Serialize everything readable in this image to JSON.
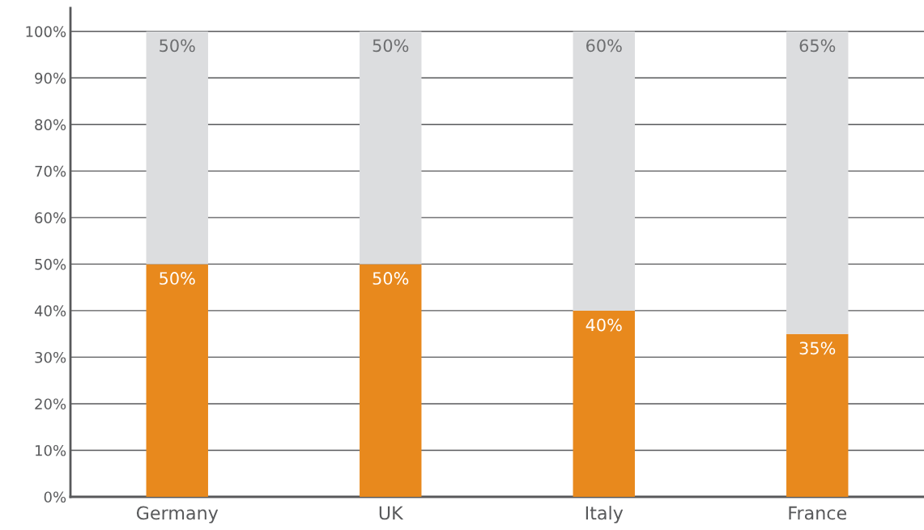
{
  "chart_data": {
    "type": "bar",
    "stacked": true,
    "categories": [
      "Germany",
      "UK",
      "Italy",
      "France"
    ],
    "series": [
      {
        "color": "#e8891d",
        "values": [
          50,
          50,
          40,
          35
        ],
        "value_labels": [
          "50%",
          "50%",
          "40%",
          "35%"
        ]
      },
      {
        "color": "#dcdddf",
        "values": [
          50,
          50,
          60,
          65
        ],
        "value_labels": [
          "50%",
          "50%",
          "60%",
          "65%"
        ]
      }
    ],
    "ylim": [
      0,
      105
    ],
    "yticks": [
      {
        "value": 0,
        "label": "0%"
      },
      {
        "value": 10,
        "label": "10%"
      },
      {
        "value": 20,
        "label": "20%"
      },
      {
        "value": 30,
        "label": "30%"
      },
      {
        "value": 40,
        "label": "40%"
      },
      {
        "value": 50,
        "label": "50%"
      },
      {
        "value": 60,
        "label": "60%"
      },
      {
        "value": 70,
        "label": "70%"
      },
      {
        "value": 80,
        "label": "80%"
      },
      {
        "value": 90,
        "label": "90%"
      },
      {
        "value": 100,
        "label": "100%"
      }
    ],
    "grid": "y",
    "legend": false
  }
}
